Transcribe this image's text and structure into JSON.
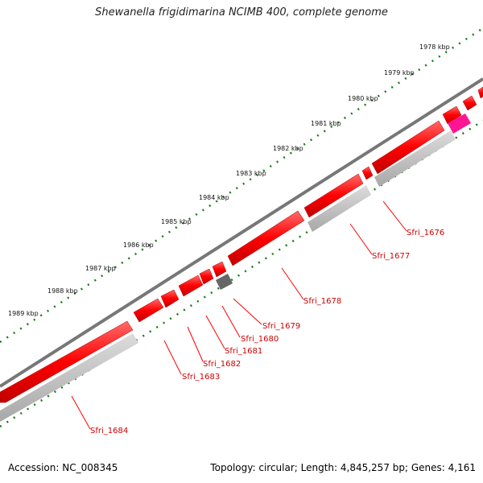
{
  "title": "Shewanella frigidimarina NCIMB 400, complete genome",
  "footer": {
    "accession": "Accession: NC_008345",
    "summary": "Topology: circular; Length: 4,845,257 bp; Genes: 4,161"
  },
  "kbp_labels": [
    "1978 kbp",
    "1979 kbp",
    "1980 kbp",
    "1981 kbp",
    "1982 kbp",
    "1983 kbp",
    "1984 kbp",
    "1985 kbp",
    "1986 kbp",
    "1987 kbp",
    "1988 kbp",
    "1989 kbp"
  ],
  "gene_labels": [
    "Sfri_1676",
    "Sfri_1677",
    "Sfri_1678",
    "Sfri_1679",
    "Sfri_1680",
    "Sfri_1681",
    "Sfri_1682",
    "Sfri_1683",
    "Sfri_1684"
  ],
  "colors": {
    "cds": "#ff0000",
    "rna_or_pseudo": "#666666",
    "highlight": "#ff1493",
    "shadow": "#c0c0c0",
    "backbone": "#777777",
    "tick": "#1a7a1a",
    "label": "#cc0000"
  }
}
